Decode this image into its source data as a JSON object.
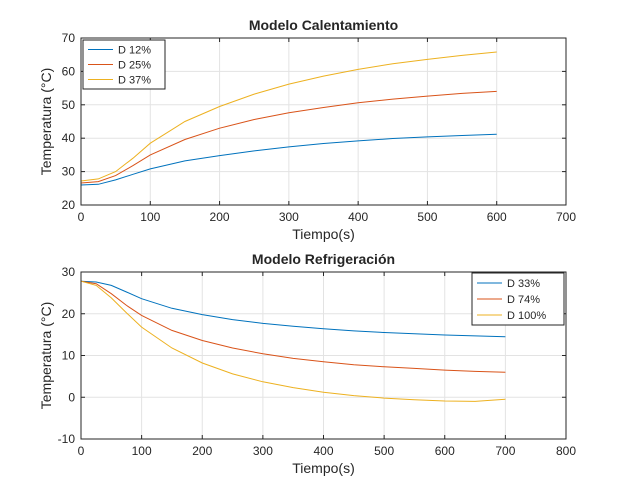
{
  "chart_data": [
    {
      "type": "line",
      "title": "Modelo Calentamiento",
      "xlabel": "Tiempo(s)",
      "ylabel": "Temperatura (°C)",
      "xlim": [
        0,
        700
      ],
      "ylim": [
        20,
        70
      ],
      "xticks": [
        0,
        100,
        200,
        300,
        400,
        500,
        600,
        700
      ],
      "yticks": [
        20,
        30,
        40,
        50,
        60,
        70
      ],
      "grid": true,
      "legend_position": "top-left",
      "x": [
        0,
        25,
        50,
        75,
        100,
        150,
        200,
        250,
        300,
        350,
        400,
        450,
        500,
        550,
        600
      ],
      "series": [
        {
          "name": "D 12%",
          "color": "#0072BD",
          "values": [
            26,
            26.2,
            27.5,
            29.2,
            30.8,
            33.2,
            34.8,
            36.2,
            37.4,
            38.4,
            39.2,
            39.9,
            40.4,
            40.8,
            41.2
          ]
        },
        {
          "name": "D 25%",
          "color": "#D95319",
          "values": [
            26.6,
            27,
            28.8,
            31.8,
            35,
            39.6,
            43,
            45.6,
            47.6,
            49.2,
            50.6,
            51.7,
            52.6,
            53.4,
            54
          ]
        },
        {
          "name": "D 37%",
          "color": "#EDB120",
          "values": [
            27.2,
            27.8,
            30,
            34,
            38.5,
            45,
            49.5,
            53.2,
            56.2,
            58.6,
            60.6,
            62.3,
            63.6,
            64.8,
            65.8
          ]
        }
      ]
    },
    {
      "type": "line",
      "title": "Modelo Refrigeración",
      "xlabel": "Tiempo(s)",
      "ylabel": "Temperatura (°C)",
      "xlim": [
        0,
        800
      ],
      "ylim": [
        -10,
        30
      ],
      "xticks": [
        0,
        100,
        200,
        300,
        400,
        500,
        600,
        700,
        800
      ],
      "yticks": [
        -10,
        0,
        10,
        20,
        30
      ],
      "grid": true,
      "legend_position": "top-right",
      "x": [
        0,
        25,
        50,
        75,
        100,
        150,
        200,
        250,
        300,
        350,
        400,
        450,
        500,
        550,
        600,
        650,
        700
      ],
      "series": [
        {
          "name": "D 33%",
          "color": "#0072BD",
          "values": [
            27.8,
            27.6,
            26.8,
            25.2,
            23.6,
            21.3,
            19.8,
            18.6,
            17.7,
            17,
            16.4,
            15.9,
            15.5,
            15.2,
            14.9,
            14.7,
            14.5
          ]
        },
        {
          "name": "D 74%",
          "color": "#D95319",
          "values": [
            27.8,
            27.2,
            24.8,
            22,
            19.6,
            16,
            13.6,
            11.8,
            10.4,
            9.3,
            8.5,
            7.8,
            7.3,
            6.9,
            6.5,
            6.2,
            6
          ]
        },
        {
          "name": "D 100%",
          "color": "#EDB120",
          "values": [
            27.8,
            26.8,
            23.8,
            20.2,
            16.8,
            11.8,
            8.2,
            5.6,
            3.7,
            2.3,
            1.2,
            0.4,
            -0.2,
            -0.6,
            -0.9,
            -1,
            -0.5
          ]
        }
      ]
    }
  ]
}
